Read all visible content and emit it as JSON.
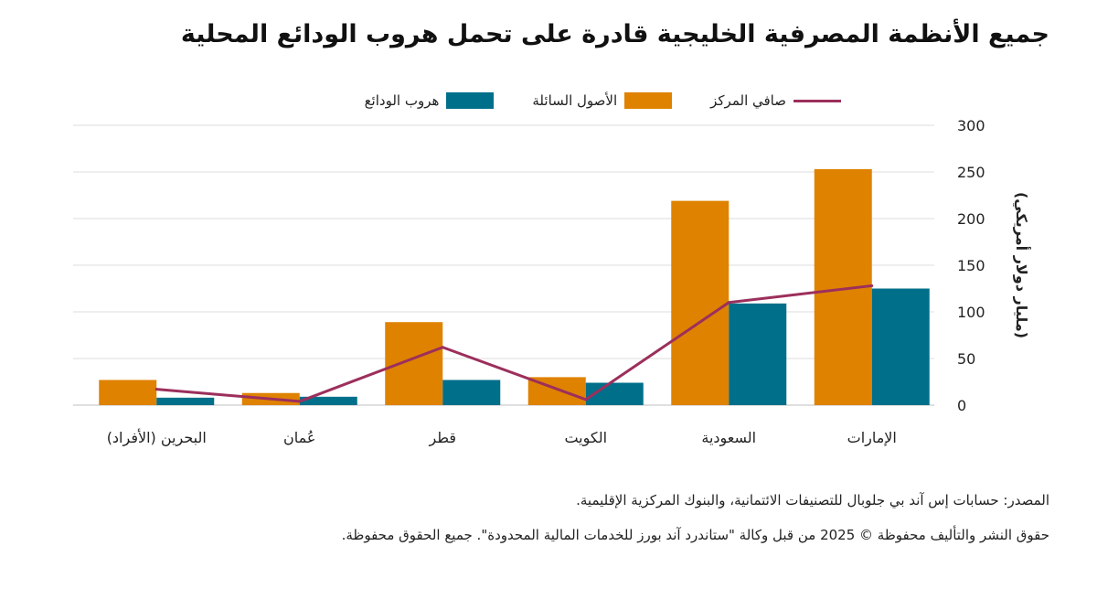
{
  "chart_data": {
    "type": "bar",
    "title": "جميع الأنظمة المصرفية الخليجية قادرة على تحمل هروب الودائع المحلية",
    "categories": [
      "الإمارات",
      "السعودية",
      "الكويت",
      "قطر",
      "عُمان",
      "البحرين (الأفراد)"
    ],
    "series": [
      {
        "name": "الأصول السائلة",
        "kind": "bar",
        "color": "#df8200",
        "values": [
          253,
          219,
          30,
          89,
          13,
          27
        ]
      },
      {
        "name": "هروب الودائع",
        "kind": "bar",
        "color": "#006f8a",
        "values": [
          125,
          109,
          24,
          27,
          9,
          8
        ]
      },
      {
        "name": "صافي المركز",
        "kind": "line",
        "color": "#9c2f5c",
        "values": [
          128,
          110,
          6,
          62,
          4,
          17
        ]
      }
    ],
    "ylabel": "(مليار دولار أمريكي)",
    "ylim": [
      0,
      300
    ],
    "yticks": [
      0,
      50,
      100,
      150,
      200,
      250,
      300
    ],
    "grid": true,
    "legend": "top",
    "axis_side": "right"
  },
  "notes": {
    "source": "المصدر: حسابات إس آند بي جلوبال للتصنيفات الائتمانية، والبنوك المركزية الإقليمية.",
    "copyright": "حقوق النشر والتأليف محفوظة © 2025 من قبل وكالة \"ستاندرد آند بورز للخدمات المالية المحدودة\". جميع الحقوق محفوظة."
  }
}
